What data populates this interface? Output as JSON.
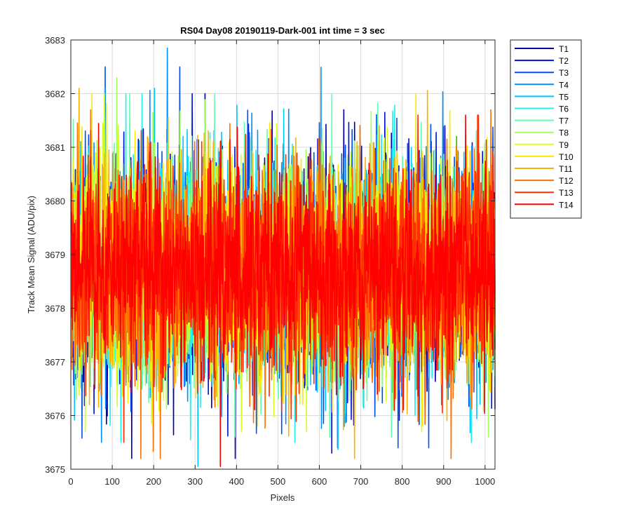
{
  "chart_data": {
    "type": "line",
    "title": "RS04 Day08 20190119-Dark-001 int time = 3 sec",
    "xlabel": "Pixels",
    "ylabel": "Track Mean Signal (ADU/pix)",
    "xlim": [
      0,
      1024
    ],
    "ylim": [
      3675,
      3683
    ],
    "xticks": [
      0,
      100,
      200,
      300,
      400,
      500,
      600,
      700,
      800,
      900,
      1000
    ],
    "yticks": [
      3675,
      3676,
      3677,
      3678,
      3679,
      3680,
      3681,
      3682,
      3683
    ],
    "grid": true,
    "legend_location": "outside-right",
    "n_points": 1024,
    "series": [
      {
        "name": "T1",
        "color": "#0000a8",
        "mean": 3678.7,
        "std": 1.0,
        "min": 3675.2,
        "max": 3682.0
      },
      {
        "name": "T2",
        "color": "#0010d8",
        "mean": 3678.7,
        "std": 1.0,
        "min": 3675.3,
        "max": 3682.0
      },
      {
        "name": "T3",
        "color": "#0050f0",
        "mean": 3678.7,
        "std": 1.0,
        "min": 3675.4,
        "max": 3682.5
      },
      {
        "name": "T4",
        "color": "#0090ff",
        "mean": 3678.7,
        "std": 1.0,
        "min": 3675.5,
        "max": 3682.85
      },
      {
        "name": "T5",
        "color": "#00c8ff",
        "mean": 3678.7,
        "std": 1.0,
        "min": 3675.05,
        "max": 3682.1
      },
      {
        "name": "T6",
        "color": "#20f0f0",
        "mean": 3678.7,
        "std": 1.0,
        "min": 3675.5,
        "max": 3682.0
      },
      {
        "name": "T7",
        "color": "#60ffb0",
        "mean": 3678.7,
        "std": 1.0,
        "min": 3675.6,
        "max": 3682.0
      },
      {
        "name": "T8",
        "color": "#a0ff60",
        "mean": 3678.7,
        "std": 1.0,
        "min": 3675.6,
        "max": 3682.3
      },
      {
        "name": "T9",
        "color": "#d8ff20",
        "mean": 3678.7,
        "std": 1.0,
        "min": 3675.7,
        "max": 3682.0
      },
      {
        "name": "T10",
        "color": "#ffe800",
        "mean": 3678.7,
        "std": 1.0,
        "min": 3675.8,
        "max": 3682.0
      },
      {
        "name": "T11",
        "color": "#ffb000",
        "mean": 3678.7,
        "std": 1.0,
        "min": 3675.2,
        "max": 3682.1
      },
      {
        "name": "T12",
        "color": "#ff7000",
        "mean": 3678.7,
        "std": 1.0,
        "min": 3675.2,
        "max": 3681.7
      },
      {
        "name": "T13",
        "color": "#ff3000",
        "mean": 3678.7,
        "std": 1.0,
        "min": 3675.5,
        "max": 3681.6
      },
      {
        "name": "T14",
        "color": "#ff0000",
        "mean": 3678.7,
        "std": 0.9,
        "min": 3675.05,
        "max": 3681.6
      }
    ]
  }
}
